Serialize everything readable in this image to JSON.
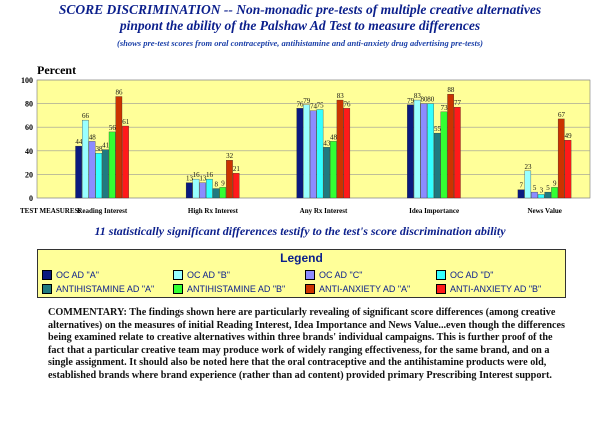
{
  "header": {
    "title_line1": "SCORE DISCRIMINATION -- Non-monadic pre-tests of multiple creative alternatives",
    "title_line2": "pinpont the ability of the Palshaw Ad Test to measure differences",
    "subtitle": "(shows pre-test scores from oral contraceptive, antihistamine and anti-anxiety drug advertising pre-tests)"
  },
  "chart_data": {
    "type": "bar",
    "title": "Percent",
    "xlabel": "TEST MEASURES:",
    "ylabel": "Percent",
    "ylim": [
      0,
      100
    ],
    "yticks": [
      0,
      20,
      40,
      60,
      80,
      100
    ],
    "grid": true,
    "legend_position": "bottom",
    "categories": [
      "Reading Interest",
      "High Rx Interest",
      "Any Rx Interest",
      "Idea Importance",
      "News Value"
    ],
    "series": [
      {
        "name": "OC AD \"A\"",
        "color": "#0a1a80",
        "values": [
          44,
          13,
          76,
          79,
          7
        ]
      },
      {
        "name": "OC AD \"B\"",
        "color": "#99ffff",
        "values": [
          66,
          16,
          79,
          83,
          23
        ]
      },
      {
        "name": "OC AD \"C\"",
        "color": "#8c8cff",
        "values": [
          48,
          13,
          74,
          80,
          5
        ]
      },
      {
        "name": "OC AD \"D\"",
        "color": "#33ffff",
        "values": [
          38,
          16,
          75,
          80,
          3
        ]
      },
      {
        "name": "ANTIHISTAMINE AD \"A\"",
        "color": "#1f7a80",
        "values": [
          41,
          8,
          43,
          55,
          5
        ]
      },
      {
        "name": "ANTIHISTAMINE AD \"B\"",
        "color": "#33ff33",
        "values": [
          56,
          9,
          48,
          73,
          9
        ]
      },
      {
        "name": "ANTI-ANXIETY AD \"A\"",
        "color": "#cc3300",
        "values": [
          86,
          32,
          83,
          88,
          67
        ]
      },
      {
        "name": "ANTI-ANXIETY AD \"B\"",
        "color": "#ff1a1a",
        "values": [
          61,
          21,
          76,
          77,
          49
        ]
      }
    ]
  },
  "headline": "11 statistically significant differences testify to the test's score discrimination ability",
  "legend": {
    "title": "Legend",
    "items": [
      "OC AD \"A\"",
      "OC AD \"B\"",
      "OC AD \"C\"",
      "OC AD \"D\"",
      "ANTIHISTAMINE AD \"A\"",
      "ANTIHISTAMINE AD \"B\"",
      "ANTI-ANXIETY AD \"A\"",
      "ANTI-ANXIETY AD \"B\""
    ]
  },
  "commentary": "COMMENTARY: The findings shown here are particularly revealing of significant score differences (among creative alternatives) on the measures of initial Reading Interest, Idea Importance and News Value...even though the differences being examined relate to creative alternatives within three brands' individual campaigns. This is further proof of the fact that a particular creative team may produce work of widely ranging effectiveness, for the same brand, and on a single assignment. It should also be noted here that the oral contraceptive and the antihistamine products were old, established brands where brand experience (rather than ad content) provided primary Prescribing Interest support."
}
